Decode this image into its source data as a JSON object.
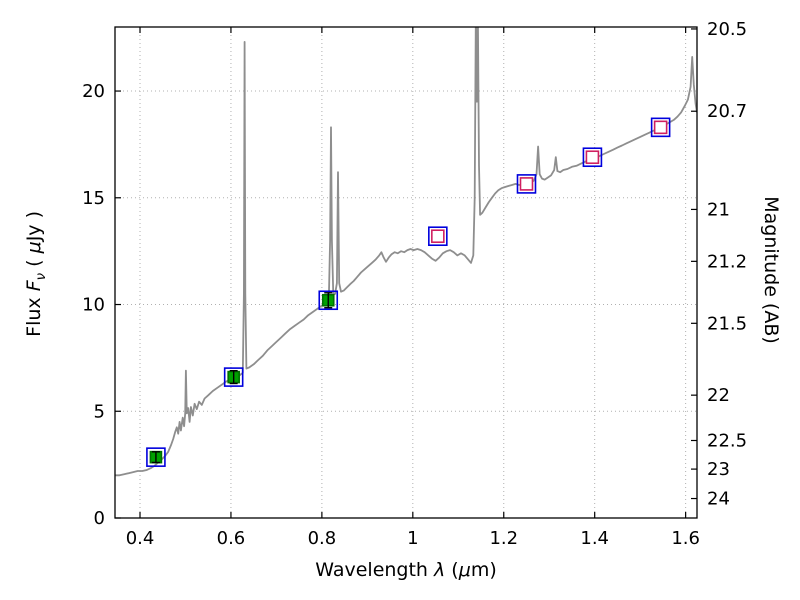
{
  "figure": {
    "xlabel": {
      "text1": "Wavelength ",
      "lambda": "λ",
      "text2": " (",
      "mu": "μ",
      "text3": "m)"
    },
    "ylabel_left": {
      "text1": "Flux ",
      "F": "F",
      "nu": "ν",
      "text2": " ( ",
      "mu": "μ",
      "text3": "Jy )"
    },
    "ylabel_right": "Magnitude (AB)"
  },
  "chart_data": {
    "type": "line",
    "title": "",
    "xlabel": "Wavelength λ (μm)",
    "ylabel_left": "Flux Fν ( μJy )",
    "ylabel_right": "Magnitude (AB)",
    "xlim": [
      0.345,
      1.625
    ],
    "ylim_flux": [
      0,
      23
    ],
    "x_ticks": [
      0.4,
      0.6,
      0.8,
      1.0,
      1.2,
      1.4,
      1.6
    ],
    "x_tick_labels": [
      "0.4",
      "0.6",
      "0.8",
      "1",
      "1.2",
      "1.4",
      "1.6"
    ],
    "y_ticks_flux": [
      0,
      5,
      10,
      15,
      20
    ],
    "y_tick_labels_flux": [
      "0",
      "5",
      "10",
      "15",
      "20"
    ],
    "y_ticks_mag": [
      20.5,
      20.7,
      21,
      21.2,
      21.5,
      22,
      22.5,
      23,
      24
    ],
    "y_tick_labels_mag": [
      "20.5",
      "20.7",
      "21",
      "21.2",
      "21.5",
      "22",
      "22.5",
      "23",
      "24"
    ],
    "ab_zeropoint": 23.9,
    "grid": {
      "on": true,
      "style": "dotted",
      "color": "#b0b0b0"
    },
    "frame_color": "#000000",
    "legend": "none",
    "series": [
      {
        "name": "model-spectrum",
        "type": "line",
        "color": "#8e8e8e",
        "width": 1.8,
        "points": [
          [
            0.345,
            2.0
          ],
          [
            0.355,
            2.0
          ],
          [
            0.365,
            2.05
          ],
          [
            0.375,
            2.1
          ],
          [
            0.385,
            2.15
          ],
          [
            0.395,
            2.2
          ],
          [
            0.405,
            2.2
          ],
          [
            0.415,
            2.25
          ],
          [
            0.425,
            2.35
          ],
          [
            0.432,
            2.45
          ],
          [
            0.44,
            2.6
          ],
          [
            0.448,
            2.75
          ],
          [
            0.455,
            2.9
          ],
          [
            0.462,
            3.1
          ],
          [
            0.468,
            3.4
          ],
          [
            0.473,
            3.7
          ],
          [
            0.477,
            4.0
          ],
          [
            0.481,
            4.25
          ],
          [
            0.484,
            3.95
          ],
          [
            0.487,
            4.5
          ],
          [
            0.49,
            4.1
          ],
          [
            0.494,
            4.7
          ],
          [
            0.497,
            4.3
          ],
          [
            0.4995,
            4.9
          ],
          [
            0.501,
            6.9
          ],
          [
            0.503,
            4.9
          ],
          [
            0.506,
            5.15
          ],
          [
            0.509,
            4.5
          ],
          [
            0.512,
            5.2
          ],
          [
            0.516,
            4.8
          ],
          [
            0.52,
            5.35
          ],
          [
            0.525,
            5.1
          ],
          [
            0.53,
            5.45
          ],
          [
            0.536,
            5.3
          ],
          [
            0.542,
            5.6
          ],
          [
            0.55,
            5.75
          ],
          [
            0.56,
            5.95
          ],
          [
            0.57,
            6.1
          ],
          [
            0.58,
            6.25
          ],
          [
            0.59,
            6.4
          ],
          [
            0.6,
            6.5
          ],
          [
            0.61,
            6.6
          ],
          [
            0.62,
            6.7
          ],
          [
            0.626,
            6.8
          ],
          [
            0.6285,
            10.5
          ],
          [
            0.63,
            22.3
          ],
          [
            0.6315,
            10.5
          ],
          [
            0.634,
            7.0
          ],
          [
            0.64,
            7.05
          ],
          [
            0.65,
            7.2
          ],
          [
            0.66,
            7.4
          ],
          [
            0.67,
            7.6
          ],
          [
            0.68,
            7.85
          ],
          [
            0.69,
            8.05
          ],
          [
            0.7,
            8.25
          ],
          [
            0.71,
            8.45
          ],
          [
            0.72,
            8.65
          ],
          [
            0.73,
            8.85
          ],
          [
            0.74,
            9.0
          ],
          [
            0.75,
            9.15
          ],
          [
            0.76,
            9.3
          ],
          [
            0.77,
            9.5
          ],
          [
            0.78,
            9.65
          ],
          [
            0.79,
            9.8
          ],
          [
            0.8,
            9.95
          ],
          [
            0.806,
            10.05
          ],
          [
            0.812,
            10.15
          ],
          [
            0.8155,
            10.4
          ],
          [
            0.818,
            13.0
          ],
          [
            0.82,
            18.3
          ],
          [
            0.822,
            13.0
          ],
          [
            0.825,
            10.45
          ],
          [
            0.829,
            10.5
          ],
          [
            0.833,
            11.0
          ],
          [
            0.8355,
            16.2
          ],
          [
            0.838,
            11.0
          ],
          [
            0.842,
            10.6
          ],
          [
            0.848,
            10.65
          ],
          [
            0.855,
            10.8
          ],
          [
            0.862,
            10.95
          ],
          [
            0.87,
            11.1
          ],
          [
            0.878,
            11.3
          ],
          [
            0.886,
            11.5
          ],
          [
            0.894,
            11.65
          ],
          [
            0.902,
            11.8
          ],
          [
            0.91,
            11.95
          ],
          [
            0.918,
            12.1
          ],
          [
            0.926,
            12.3
          ],
          [
            0.931,
            12.45
          ],
          [
            0.936,
            12.2
          ],
          [
            0.941,
            12.0
          ],
          [
            0.947,
            12.2
          ],
          [
            0.953,
            12.35
          ],
          [
            0.96,
            12.45
          ],
          [
            0.967,
            12.4
          ],
          [
            0.974,
            12.5
          ],
          [
            0.981,
            12.45
          ],
          [
            0.988,
            12.55
          ],
          [
            0.995,
            12.6
          ],
          [
            1.002,
            12.55
          ],
          [
            1.01,
            12.6
          ],
          [
            1.018,
            12.55
          ],
          [
            1.026,
            12.45
          ],
          [
            1.034,
            12.3
          ],
          [
            1.042,
            12.15
          ],
          [
            1.05,
            12.05
          ],
          [
            1.058,
            12.2
          ],
          [
            1.066,
            12.4
          ],
          [
            1.074,
            12.5
          ],
          [
            1.082,
            12.55
          ],
          [
            1.09,
            12.45
          ],
          [
            1.098,
            12.3
          ],
          [
            1.106,
            12.4
          ],
          [
            1.114,
            12.3
          ],
          [
            1.122,
            12.1
          ],
          [
            1.128,
            11.95
          ],
          [
            1.133,
            12.3
          ],
          [
            1.136,
            15.0
          ],
          [
            1.139,
            24.8
          ],
          [
            1.141,
            19.5
          ],
          [
            1.143,
            24.0
          ],
          [
            1.1455,
            16.5
          ],
          [
            1.148,
            14.2
          ],
          [
            1.153,
            14.3
          ],
          [
            1.16,
            14.55
          ],
          [
            1.167,
            14.8
          ],
          [
            1.174,
            15.0
          ],
          [
            1.181,
            15.2
          ],
          [
            1.188,
            15.35
          ],
          [
            1.195,
            15.45
          ],
          [
            1.202,
            15.5
          ],
          [
            1.21,
            15.55
          ],
          [
            1.218,
            15.6
          ],
          [
            1.226,
            15.65
          ],
          [
            1.234,
            15.6
          ],
          [
            1.242,
            15.65
          ],
          [
            1.25,
            15.6
          ],
          [
            1.258,
            15.7
          ],
          [
            1.266,
            15.8
          ],
          [
            1.272,
            16.1
          ],
          [
            1.2755,
            17.4
          ],
          [
            1.279,
            16.1
          ],
          [
            1.284,
            15.9
          ],
          [
            1.29,
            15.85
          ],
          [
            1.297,
            15.95
          ],
          [
            1.304,
            16.05
          ],
          [
            1.311,
            16.3
          ],
          [
            1.3145,
            16.9
          ],
          [
            1.318,
            16.25
          ],
          [
            1.324,
            16.2
          ],
          [
            1.331,
            16.3
          ],
          [
            1.34,
            16.35
          ],
          [
            1.35,
            16.45
          ],
          [
            1.36,
            16.5
          ],
          [
            1.37,
            16.6
          ],
          [
            1.38,
            16.7
          ],
          [
            1.39,
            16.75
          ],
          [
            1.4,
            16.85
          ],
          [
            1.41,
            16.95
          ],
          [
            1.42,
            17.05
          ],
          [
            1.43,
            17.15
          ],
          [
            1.44,
            17.25
          ],
          [
            1.45,
            17.35
          ],
          [
            1.46,
            17.45
          ],
          [
            1.47,
            17.55
          ],
          [
            1.48,
            17.65
          ],
          [
            1.49,
            17.75
          ],
          [
            1.5,
            17.85
          ],
          [
            1.51,
            17.95
          ],
          [
            1.52,
            18.05
          ],
          [
            1.53,
            18.15
          ],
          [
            1.54,
            18.2
          ],
          [
            1.55,
            18.35
          ],
          [
            1.558,
            18.45
          ],
          [
            1.566,
            18.55
          ],
          [
            1.574,
            18.65
          ],
          [
            1.582,
            18.8
          ],
          [
            1.59,
            19.0
          ],
          [
            1.598,
            19.3
          ],
          [
            1.605,
            19.6
          ],
          [
            1.611,
            20.2
          ],
          [
            1.6145,
            21.6
          ],
          [
            1.618,
            20.3
          ],
          [
            1.622,
            19.4
          ],
          [
            1.625,
            19.0
          ]
        ]
      },
      {
        "name": "band-model-outer-squares",
        "type": "scatter",
        "marker": "open-square",
        "size": 18,
        "color": "#0000dd",
        "fill": "none",
        "points": [
          {
            "x": 0.435,
            "y": 2.85
          },
          {
            "x": 0.606,
            "y": 6.6
          },
          {
            "x": 0.814,
            "y": 10.2
          },
          {
            "x": 1.055,
            "y": 13.2
          },
          {
            "x": 1.25,
            "y": 15.65
          },
          {
            "x": 1.395,
            "y": 16.9
          },
          {
            "x": 1.545,
            "y": 18.3
          }
        ]
      },
      {
        "name": "band-model-inner-squares",
        "type": "scatter",
        "marker": "open-square",
        "size": 12,
        "color": "#d02060",
        "fill": "#ffffff",
        "points": [
          {
            "x": 1.055,
            "y": 13.2
          },
          {
            "x": 1.25,
            "y": 15.65
          },
          {
            "x": 1.395,
            "y": 16.9
          },
          {
            "x": 1.545,
            "y": 18.3
          }
        ]
      },
      {
        "name": "observed-photometry",
        "type": "scatter",
        "marker": "filled-square",
        "size": 11,
        "color": "#00a000",
        "edge": "#007000",
        "err_color": "#000000",
        "points": [
          {
            "x": 0.435,
            "y": 2.85,
            "yerr": 0.25
          },
          {
            "x": 0.606,
            "y": 6.6,
            "yerr": 0.3
          },
          {
            "x": 0.814,
            "y": 10.2,
            "yerr": 0.35
          }
        ]
      }
    ]
  }
}
